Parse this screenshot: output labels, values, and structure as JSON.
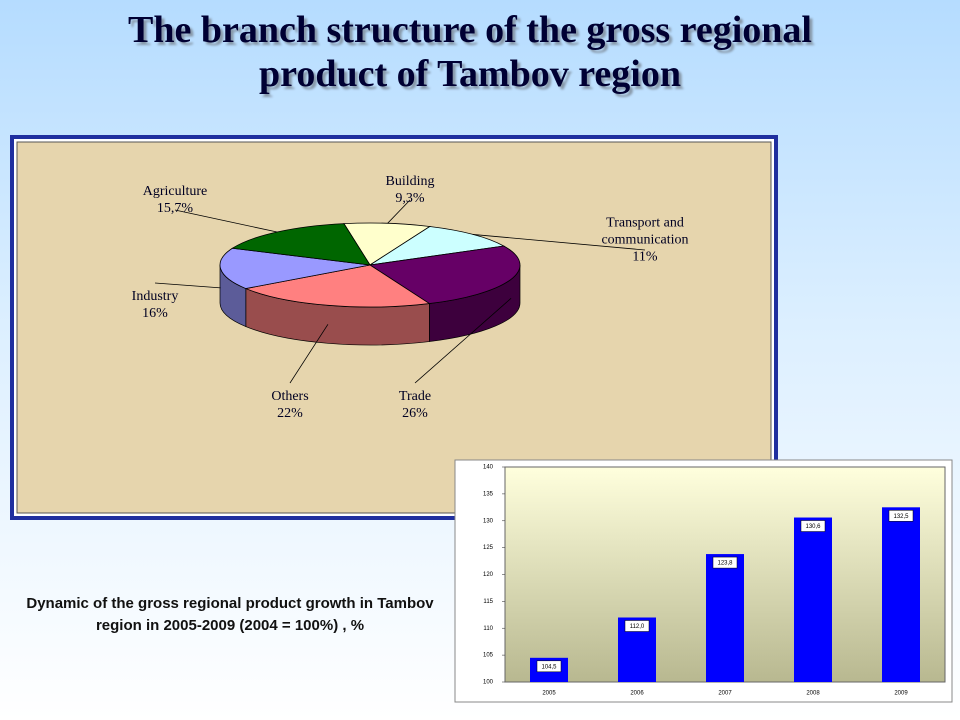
{
  "title": "The branch structure of the gross regional product of Tambov region",
  "chart_data": [
    {
      "type": "pie",
      "categories": [
        "Building",
        "Transport and communication",
        "Trade",
        "Others",
        "Industry",
        "Agriculture"
      ],
      "values": [
        9.3,
        11,
        26,
        22,
        16,
        15.7
      ],
      "value_labels": [
        "9,3%",
        "11%",
        "26%",
        "22%",
        "16%",
        "15,7%"
      ],
      "colors": [
        "#ffffcc",
        "#ccffff",
        "#660066",
        "#ff8080",
        "#9999ff",
        "#006600"
      ]
    },
    {
      "type": "bar",
      "title": "Dynamic of the gross regional product growth in Tambov region in 2005-2009 (2004 = 100%) , %",
      "categories": [
        "2005",
        "2006",
        "2007",
        "2008",
        "2009"
      ],
      "values": [
        104.5,
        112.0,
        123.8,
        130.6,
        132.5
      ],
      "value_labels": [
        "104,5",
        "112,0",
        "123,8",
        "130,6",
        "132,5"
      ],
      "color": "#0000ff",
      "ylim": [
        100,
        140
      ],
      "yticks": [
        100,
        105,
        110,
        115,
        120,
        125,
        130,
        135,
        140
      ]
    }
  ]
}
